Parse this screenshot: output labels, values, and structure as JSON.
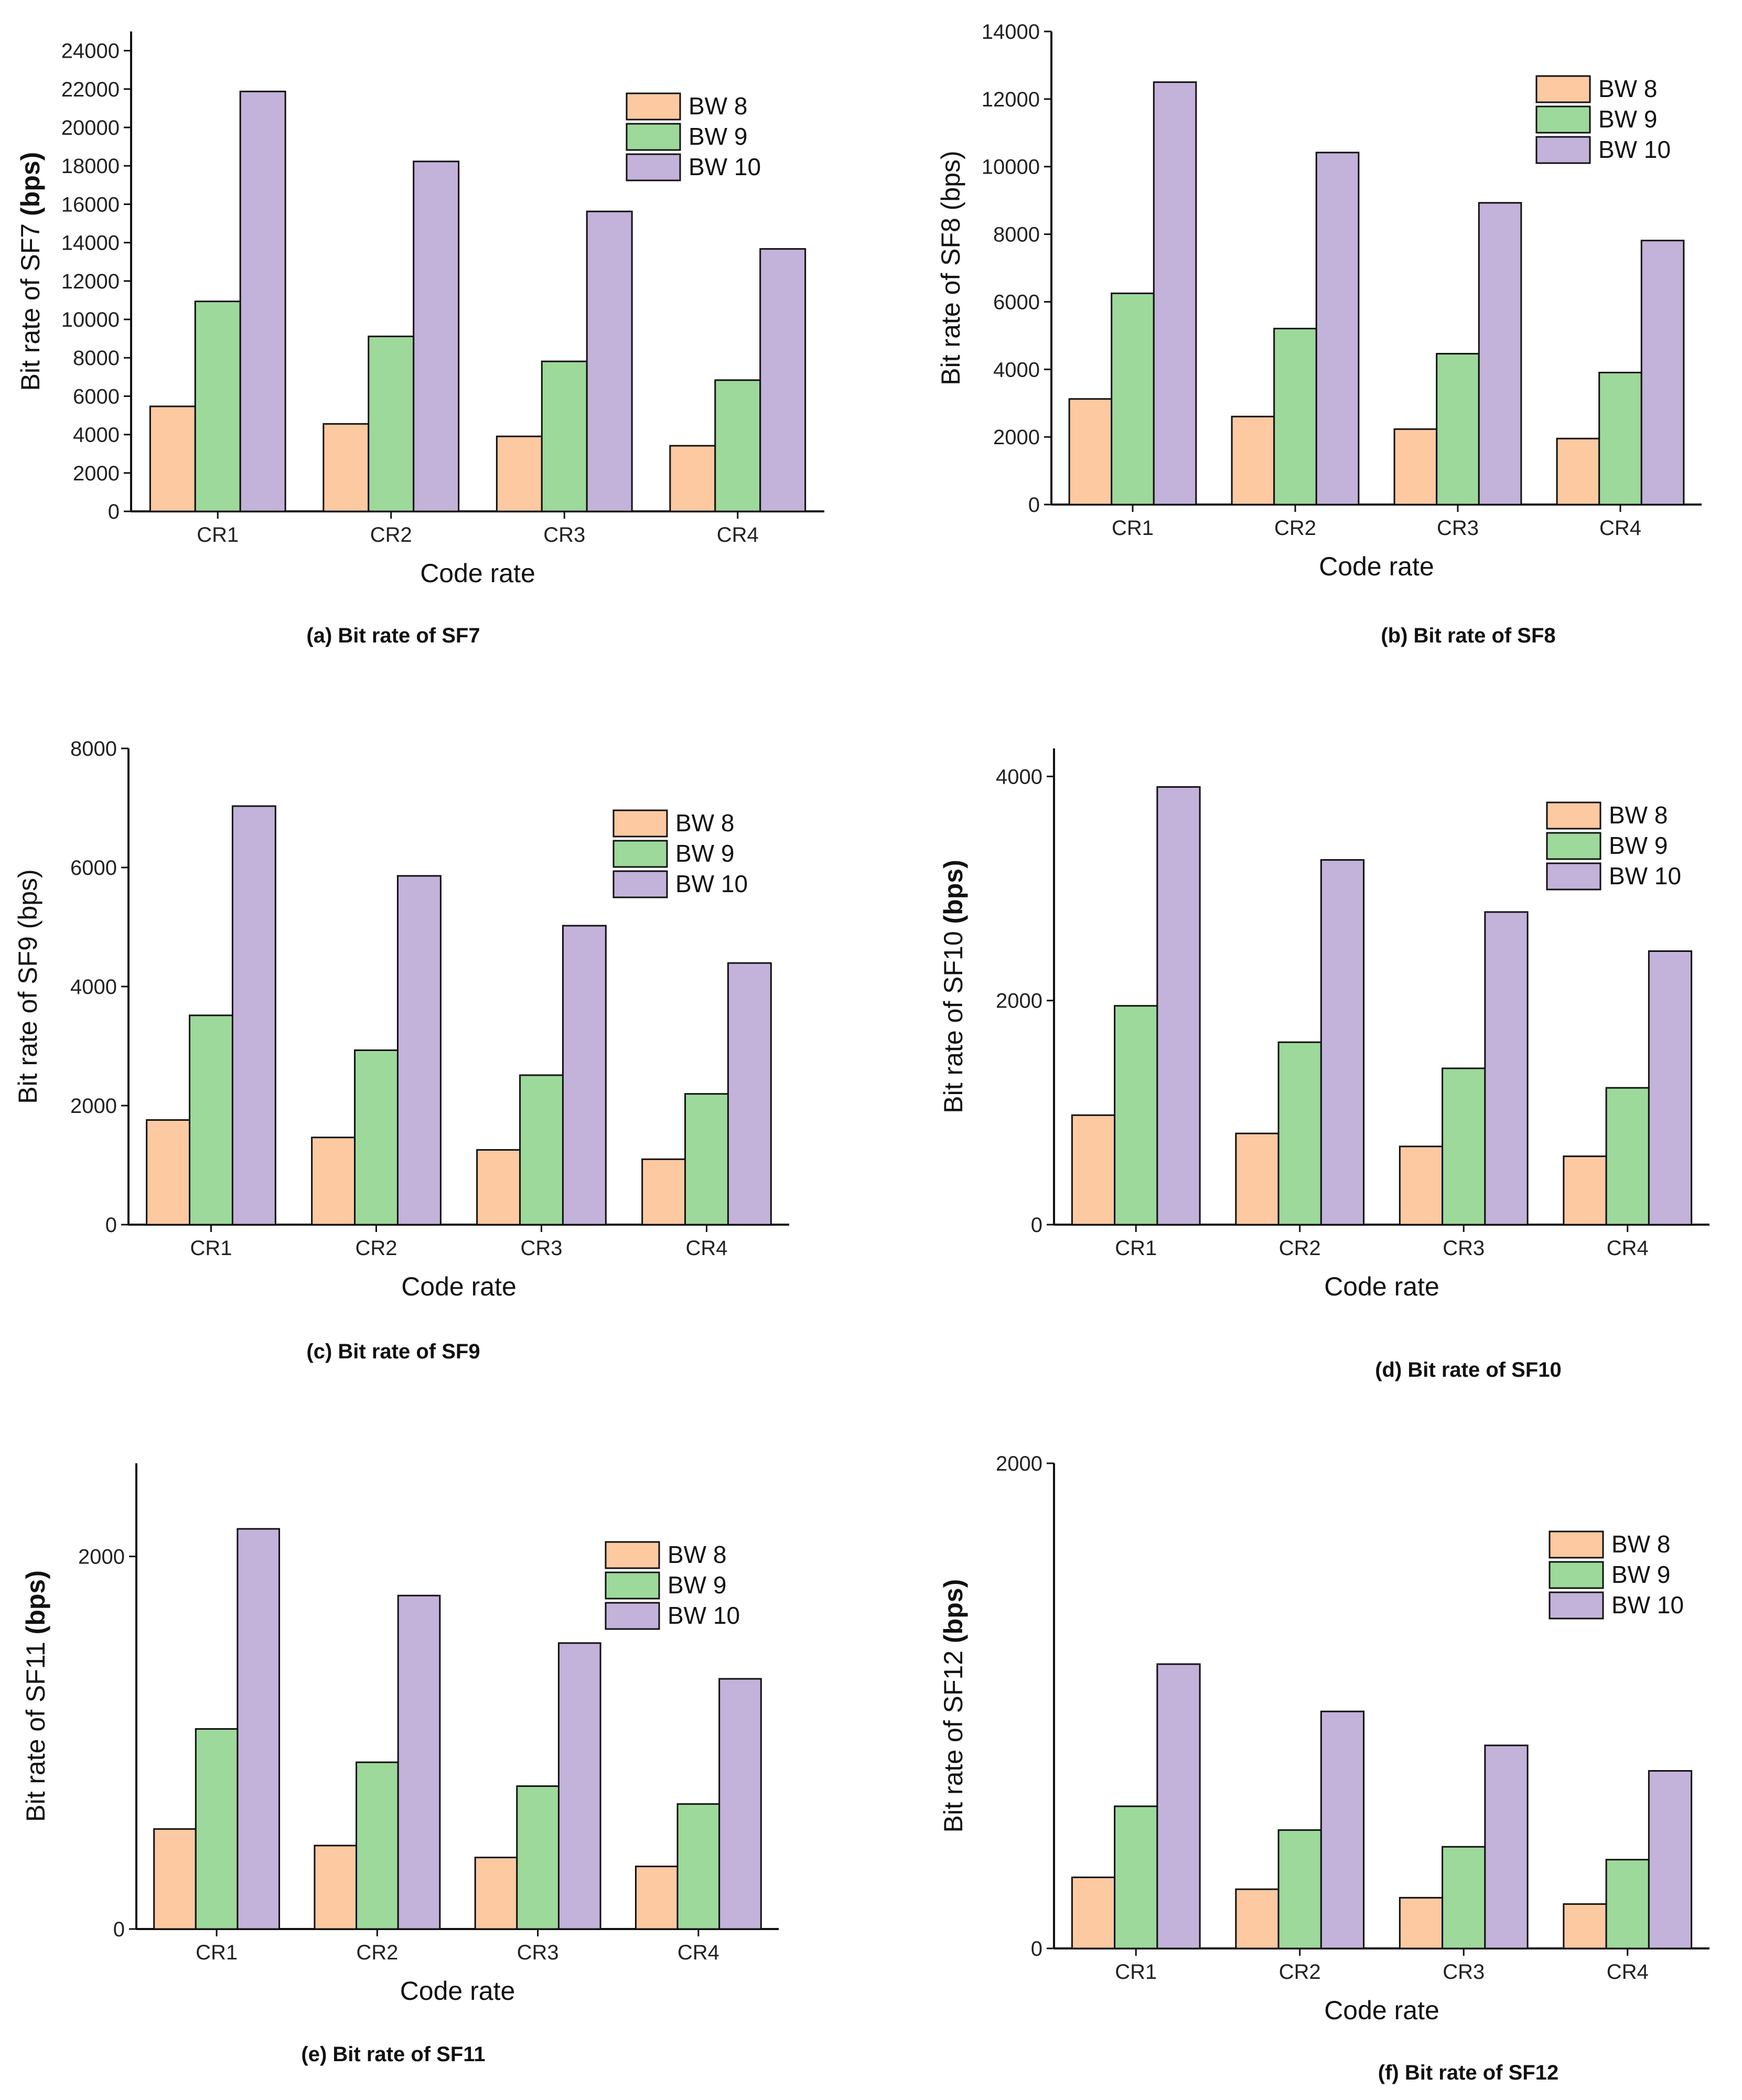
{
  "colors": {
    "BW 8": "#fcc9a1",
    "BW 9": "#9dd99b",
    "BW 10": "#c3b2d9"
  },
  "chart_data": [
    {
      "id": "a",
      "type": "bar",
      "caption": "(a) Bit rate of SF7",
      "xlabel": "Code rate",
      "ylabel_plain": "Bit rate of SF7 ",
      "ylabel_bold": "(bps)",
      "categories": [
        "CR1",
        "CR2",
        "CR3",
        "CR4"
      ],
      "ylim": [
        0,
        25000
      ],
      "yticks": [
        0,
        2000,
        4000,
        6000,
        8000,
        10000,
        12000,
        14000,
        16000,
        18000,
        20000,
        22000,
        24000
      ],
      "series": [
        {
          "name": "BW 8",
          "values": [
            5469,
            4557,
            3906,
            3418
          ]
        },
        {
          "name": "BW 9",
          "values": [
            10938,
            9115,
            7813,
            6836
          ]
        },
        {
          "name": "BW 10",
          "values": [
            21875,
            18229,
            15625,
            13672
          ]
        }
      ]
    },
    {
      "id": "b",
      "type": "bar",
      "caption": "(b) Bit rate of SF8",
      "xlabel": "Code rate",
      "ylabel_plain": "Bit rate of SF8 (bps)",
      "ylabel_bold": "",
      "categories": [
        "CR1",
        "CR2",
        "CR3",
        "CR4"
      ],
      "ylim": [
        0,
        14000
      ],
      "yticks": [
        0,
        2000,
        4000,
        6000,
        8000,
        10000,
        12000,
        14000
      ],
      "series": [
        {
          "name": "BW 8",
          "values": [
            3125,
            2604,
            2232,
            1953
          ]
        },
        {
          "name": "BW 9",
          "values": [
            6250,
            5208,
            4464,
            3906
          ]
        },
        {
          "name": "BW 10",
          "values": [
            12500,
            10417,
            8929,
            7813
          ]
        }
      ]
    },
    {
      "id": "c",
      "type": "bar",
      "caption": "(c) Bit rate of SF9",
      "xlabel": "Code rate",
      "ylabel_plain": "Bit rate of SF9 (bps)",
      "ylabel_bold": "",
      "categories": [
        "CR1",
        "CR2",
        "CR3",
        "CR4"
      ],
      "ylim": [
        0,
        8000
      ],
      "yticks": [
        0,
        2000,
        4000,
        6000,
        8000
      ],
      "series": [
        {
          "name": "BW 8",
          "values": [
            1758,
            1465,
            1256,
            1099
          ]
        },
        {
          "name": "BW 9",
          "values": [
            3516,
            2930,
            2511,
            2197
          ]
        },
        {
          "name": "BW 10",
          "values": [
            7031,
            5859,
            5022,
            4395
          ]
        }
      ]
    },
    {
      "id": "d",
      "type": "bar",
      "caption": "(d) Bit rate of SF10",
      "xlabel": "Code rate",
      "ylabel_plain": "Bit rate of SF10 ",
      "ylabel_bold": "(bps)",
      "categories": [
        "CR1",
        "CR2",
        "CR3",
        "CR4"
      ],
      "ylim": [
        0,
        4250
      ],
      "yticks": [
        0,
        2000,
        4000
      ],
      "series": [
        {
          "name": "BW 8",
          "values": [
            977,
            814,
            698,
            610
          ]
        },
        {
          "name": "BW 9",
          "values": [
            1953,
            1628,
            1395,
            1221
          ]
        },
        {
          "name": "BW 10",
          "values": [
            3906,
            3255,
            2790,
            2441
          ]
        }
      ]
    },
    {
      "id": "e",
      "type": "bar",
      "caption": "(e) Bit rate of SF11",
      "xlabel": "Code rate",
      "ylabel_plain": "Bit rate of SF11 ",
      "ylabel_bold": "(bps)",
      "categories": [
        "CR1",
        "CR2",
        "CR3",
        "CR4"
      ],
      "ylim": [
        0,
        2500
      ],
      "yticks": [
        0,
        2000
      ],
      "series": [
        {
          "name": "BW 8",
          "values": [
            537,
            448,
            384,
            336
          ]
        },
        {
          "name": "BW 9",
          "values": [
            1074,
            895,
            767,
            671
          ]
        },
        {
          "name": "BW 10",
          "values": [
            2148,
            1790,
            1535,
            1343
          ]
        }
      ]
    },
    {
      "id": "f",
      "type": "bar",
      "caption": "(f) Bit rate of SF12",
      "xlabel": "Code rate",
      "ylabel_plain": "Bit rate of SF12 ",
      "ylabel_bold": "(bps)",
      "categories": [
        "CR1",
        "CR2",
        "CR3",
        "CR4"
      ],
      "ylim": [
        0,
        2000
      ],
      "yticks": [
        0,
        2000
      ],
      "series": [
        {
          "name": "BW 8",
          "values": [
            293,
            244,
            209,
            183
          ]
        },
        {
          "name": "BW 9",
          "values": [
            586,
            488,
            419,
            366
          ]
        },
        {
          "name": "BW 10",
          "values": [
            1172,
            977,
            837,
            732
          ]
        }
      ]
    }
  ]
}
